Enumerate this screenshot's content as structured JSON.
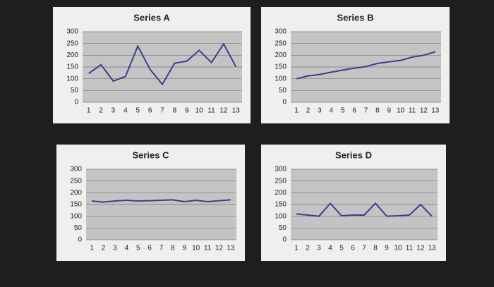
{
  "chart_data": [
    {
      "type": "line",
      "title": "Series A",
      "categories": [
        1,
        2,
        3,
        4,
        5,
        6,
        7,
        8,
        9,
        10,
        11,
        12,
        13
      ],
      "values": [
        122,
        160,
        90,
        110,
        239,
        140,
        76,
        166,
        175,
        221,
        169,
        248,
        151
      ],
      "color": "#3b3f8c",
      "ylim": [
        0,
        300
      ],
      "yticks": [
        0,
        50,
        100,
        150,
        200,
        250,
        300
      ],
      "grid": true
    },
    {
      "type": "line",
      "title": "Series B",
      "categories": [
        1,
        2,
        3,
        4,
        5,
        6,
        7,
        8,
        9,
        10,
        11,
        12,
        13
      ],
      "values": [
        100,
        112,
        118,
        128,
        137,
        145,
        152,
        165,
        172,
        178,
        192,
        200,
        215
      ],
      "color": "#3b3f8c",
      "ylim": [
        0,
        300
      ],
      "yticks": [
        0,
        50,
        100,
        150,
        200,
        250,
        300
      ],
      "grid": true
    },
    {
      "type": "line",
      "title": "Series C",
      "categories": [
        1,
        2,
        3,
        4,
        5,
        6,
        7,
        8,
        9,
        10,
        11,
        12,
        13
      ],
      "values": [
        165,
        160,
        165,
        168,
        165,
        166,
        168,
        170,
        162,
        168,
        162,
        166,
        170
      ],
      "color": "#3b3f8c",
      "ylim": [
        0,
        300
      ],
      "yticks": [
        0,
        50,
        100,
        150,
        200,
        250,
        300
      ],
      "grid": true
    },
    {
      "type": "line",
      "title": "Series D",
      "categories": [
        1,
        2,
        3,
        4,
        5,
        6,
        7,
        8,
        9,
        10,
        11,
        12,
        13
      ],
      "values": [
        110,
        105,
        100,
        155,
        102,
        105,
        105,
        155,
        100,
        102,
        105,
        150,
        100
      ],
      "color": "#3b3f8c",
      "ylim": [
        0,
        300
      ],
      "yticks": [
        0,
        50,
        100,
        150,
        200,
        250,
        300
      ],
      "grid": true
    }
  ]
}
